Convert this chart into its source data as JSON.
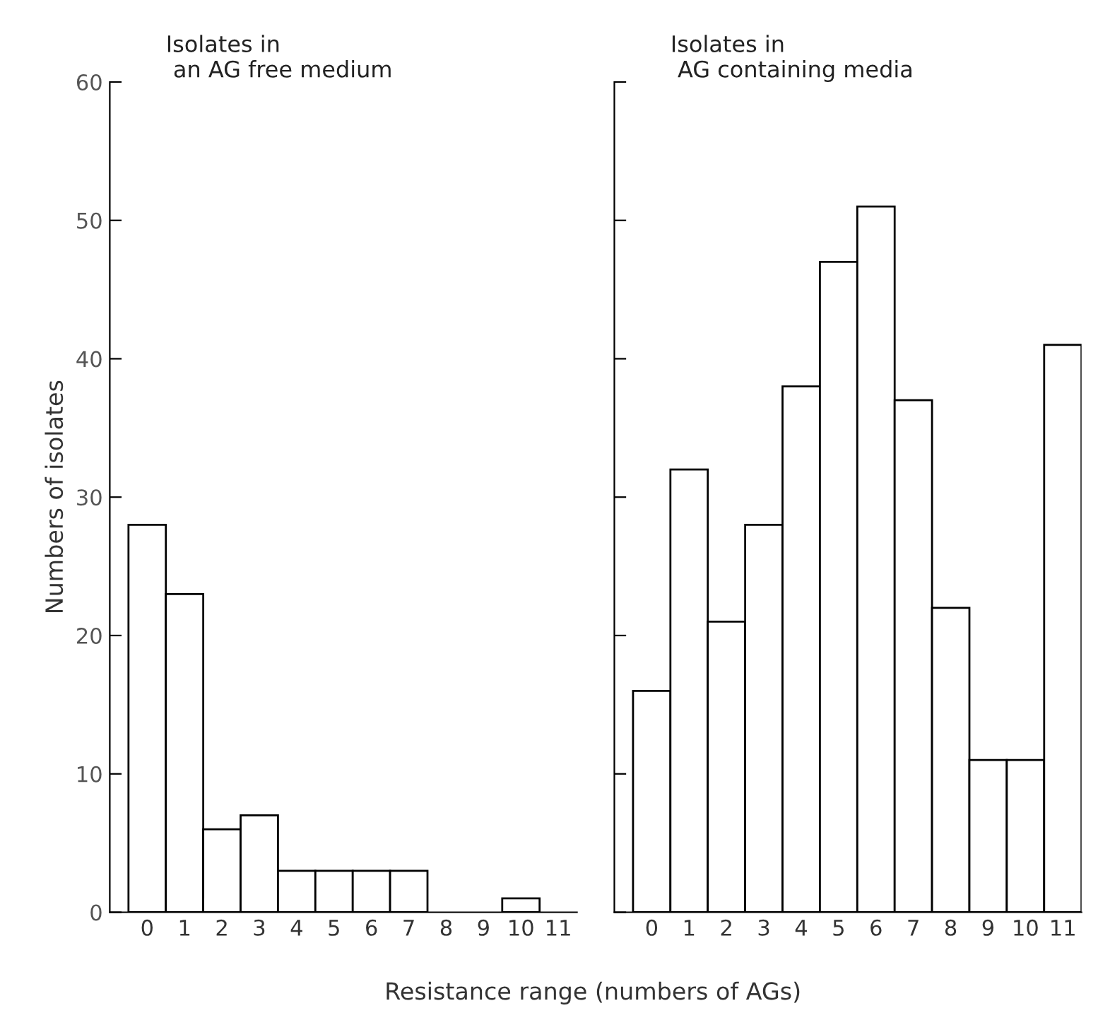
{
  "chart_data": [
    {
      "type": "bar",
      "title": "Isolates in\n an AG free medium",
      "ylabel": "Numbers of isolates",
      "xlabel": "Resistance range (numbers of AGs)",
      "categories": [
        "0",
        "1",
        "2",
        "3",
        "4",
        "5",
        "6",
        "7",
        "8",
        "9",
        "10",
        "11"
      ],
      "values": [
        28,
        23,
        6,
        7,
        3,
        3,
        3,
        3,
        null,
        null,
        1,
        null
      ],
      "color": "#ffffff",
      "ylim": [
        0,
        60
      ],
      "yticks": [
        0,
        10,
        20,
        30,
        40,
        50,
        60
      ],
      "grid": false,
      "legend": false
    },
    {
      "type": "bar",
      "title": "Isolates in\n AG containing media",
      "categories": [
        "0",
        "1",
        "2",
        "3",
        "4",
        "5",
        "6",
        "7",
        "8",
        "9",
        "10",
        "11"
      ],
      "values": [
        16,
        32,
        21,
        28,
        38,
        47,
        51,
        37,
        22,
        11,
        11,
        41
      ],
      "color": "#ffffff",
      "ylim": [
        0,
        60
      ],
      "yticks": [
        0,
        10,
        20,
        30,
        40,
        50,
        60
      ],
      "tick_labels": "x",
      "grid": false,
      "legend": false
    }
  ]
}
